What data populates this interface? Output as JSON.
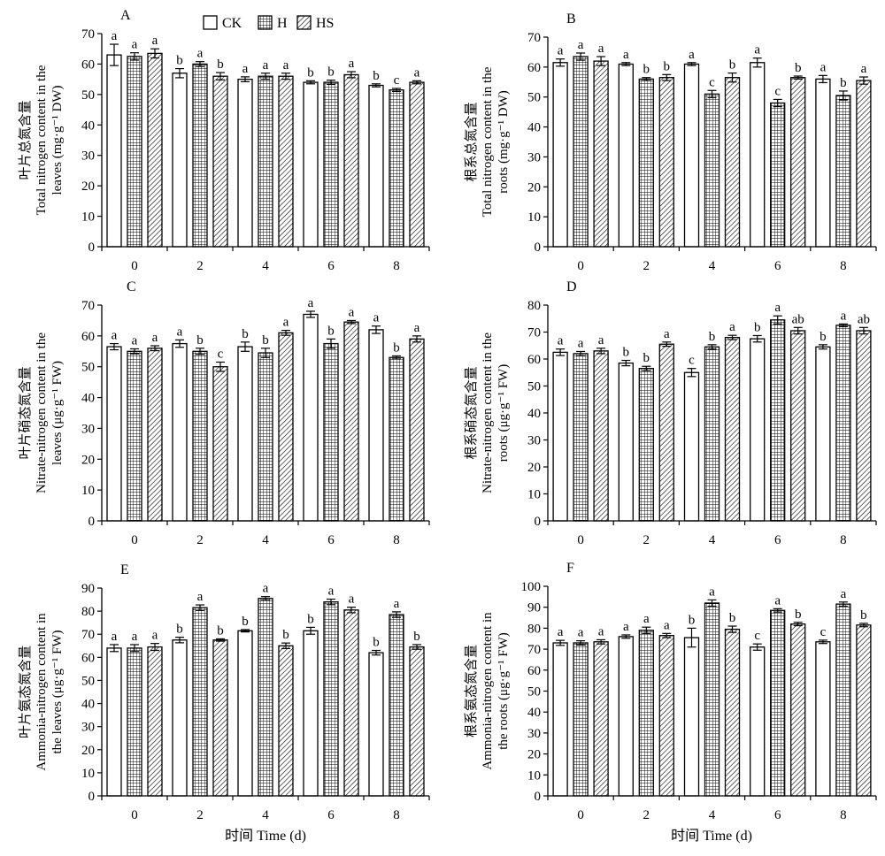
{
  "legend": {
    "items": [
      {
        "label": "CK",
        "pattern": "plain"
      },
      {
        "label": "H",
        "pattern": "grid"
      },
      {
        "label": "HS",
        "pattern": "hatch"
      }
    ]
  },
  "x_axis_title": "时间 Time (d)",
  "chart_data": [
    {
      "type": "bar",
      "panel": "A",
      "ylabel_lines": [
        "叶片总氮含量",
        "Total nitrogen content in the",
        "leaves (mg·g⁻¹ DW)"
      ],
      "categories": [
        "0",
        "2",
        "4",
        "6",
        "8"
      ],
      "ylim": [
        0,
        70
      ],
      "yticks": [
        0,
        10,
        20,
        30,
        40,
        50,
        60,
        70
      ],
      "series": [
        {
          "name": "CK",
          "values": [
            63,
            57,
            55,
            54,
            53
          ],
          "errors": [
            3.5,
            1.5,
            0.8,
            0.5,
            0.5
          ],
          "letters": [
            "a",
            "b",
            "a",
            "b",
            "b"
          ]
        },
        {
          "name": "H",
          "values": [
            62.5,
            60,
            56,
            54,
            51.5
          ],
          "errors": [
            1.2,
            0.8,
            1.0,
            0.7,
            0.5
          ],
          "letters": [
            "a",
            "a",
            "a",
            "b",
            "c"
          ]
        },
        {
          "name": "HS",
          "values": [
            63.5,
            56,
            56,
            56.5,
            54
          ],
          "errors": [
            1.5,
            1.2,
            1.0,
            1.0,
            0.5
          ],
          "letters": [
            "a",
            "b",
            "a",
            "a",
            "a"
          ]
        }
      ]
    },
    {
      "type": "bar",
      "panel": "B",
      "ylabel_lines": [
        "根系总氮含量",
        "Total nitrogen content in the",
        "roots (mg·g⁻¹ DW)"
      ],
      "categories": [
        "0",
        "2",
        "4",
        "6",
        "8"
      ],
      "ylim": [
        0,
        70
      ],
      "yticks": [
        0,
        10,
        20,
        30,
        40,
        50,
        60,
        70
      ],
      "series": [
        {
          "name": "CK",
          "values": [
            61.5,
            61,
            61,
            61.5,
            56
          ],
          "errors": [
            1.2,
            0.5,
            0.5,
            1.5,
            1.2
          ],
          "letters": [
            "a",
            "a",
            "a",
            "a",
            "a"
          ]
        },
        {
          "name": "H",
          "values": [
            63.5,
            56,
            51,
            48,
            50.5
          ],
          "errors": [
            1.2,
            0.5,
            1.2,
            1.2,
            1.5
          ],
          "letters": [
            "a",
            "b",
            "c",
            "c",
            "b"
          ]
        },
        {
          "name": "HS",
          "values": [
            62,
            56.5,
            56.5,
            56.5,
            55.5
          ],
          "errors": [
            1.5,
            1.0,
            1.5,
            0.5,
            1.2
          ],
          "letters": [
            "a",
            "b",
            "b",
            "b",
            "a"
          ]
        }
      ]
    },
    {
      "type": "bar",
      "panel": "C",
      "ylabel_lines": [
        "叶片硝态氮含量",
        "Nitrate-nitrogen content in the",
        "leaves (μg·g⁻¹ FW)"
      ],
      "categories": [
        "0",
        "2",
        "4",
        "6",
        "8"
      ],
      "ylim": [
        0,
        70
      ],
      "yticks": [
        0,
        10,
        20,
        30,
        40,
        50,
        60,
        70
      ],
      "series": [
        {
          "name": "CK",
          "values": [
            56.5,
            57.5,
            56.5,
            67,
            62
          ],
          "errors": [
            1.0,
            1.2,
            1.5,
            1.0,
            1.2
          ],
          "letters": [
            "a",
            "a",
            "b",
            "a",
            "a"
          ]
        },
        {
          "name": "H",
          "values": [
            55,
            55,
            54.5,
            57.5,
            53
          ],
          "errors": [
            0.8,
            1.0,
            1.5,
            1.5,
            0.5
          ],
          "letters": [
            "a",
            "b",
            "b",
            "b",
            "b"
          ]
        },
        {
          "name": "HS",
          "values": [
            56,
            50,
            61,
            64.5,
            59
          ],
          "errors": [
            0.8,
            1.5,
            0.8,
            0.5,
            1.0
          ],
          "letters": [
            "a",
            "c",
            "a",
            "a",
            "a"
          ]
        }
      ]
    },
    {
      "type": "bar",
      "panel": "D",
      "ylabel_lines": [
        "根系硝态氮含量",
        "Nitrate-nitrogen content in the",
        "roots (μg·g⁻¹ FW)"
      ],
      "categories": [
        "0",
        "2",
        "4",
        "6",
        "8"
      ],
      "ylim": [
        0,
        80
      ],
      "yticks": [
        0,
        10,
        20,
        30,
        40,
        50,
        60,
        70,
        80
      ],
      "series": [
        {
          "name": "CK",
          "values": [
            62.5,
            58.5,
            55,
            67.5,
            64.5
          ],
          "errors": [
            1.2,
            1.0,
            1.5,
            1.2,
            0.8
          ],
          "letters": [
            "a",
            "b",
            "c",
            "b",
            "b"
          ]
        },
        {
          "name": "H",
          "values": [
            62,
            56.5,
            64.5,
            74.5,
            72.5
          ],
          "errors": [
            0.8,
            0.8,
            0.8,
            1.5,
            0.5
          ],
          "letters": [
            "a",
            "b",
            "b",
            "a",
            "a"
          ]
        },
        {
          "name": "HS",
          "values": [
            63,
            65.5,
            68,
            70.5,
            70.5
          ],
          "errors": [
            1.0,
            0.8,
            0.8,
            1.2,
            1.2
          ],
          "letters": [
            "a",
            "a",
            "a",
            "ab",
            "ab"
          ]
        }
      ]
    },
    {
      "type": "bar",
      "panel": "E",
      "ylabel_lines": [
        "叶片氨态氮含量",
        "Ammonia-nitrogen content in",
        "the leaves (μg·g⁻¹ FW)"
      ],
      "categories": [
        "0",
        "2",
        "4",
        "6",
        "8"
      ],
      "ylim": [
        0,
        90
      ],
      "yticks": [
        0,
        10,
        20,
        30,
        40,
        50,
        60,
        70,
        80,
        90
      ],
      "series": [
        {
          "name": "CK",
          "values": [
            64,
            67.5,
            71.5,
            71.5,
            62
          ],
          "errors": [
            1.5,
            1.2,
            0.5,
            1.5,
            1.0
          ],
          "letters": [
            "a",
            "b",
            "b",
            "b",
            "b"
          ]
        },
        {
          "name": "H",
          "values": [
            64,
            81.5,
            85.5,
            84,
            78.5
          ],
          "errors": [
            1.5,
            1.2,
            0.8,
            1.2,
            1.2
          ],
          "letters": [
            "a",
            "a",
            "a",
            "a",
            "a"
          ]
        },
        {
          "name": "HS",
          "values": [
            64.5,
            67.5,
            65,
            80.5,
            64.5
          ],
          "errors": [
            1.5,
            0.5,
            1.2,
            1.2,
            1.0
          ],
          "letters": [
            "a",
            "b",
            "b",
            "a",
            "b"
          ]
        }
      ]
    },
    {
      "type": "bar",
      "panel": "F",
      "ylabel_lines": [
        "根系氨态氮含量",
        "Ammonia-nitrogen content in",
        "the roots (μg·g⁻¹ FW)"
      ],
      "categories": [
        "0",
        "2",
        "4",
        "6",
        "8"
      ],
      "ylim": [
        0,
        100
      ],
      "yticks": [
        0,
        10,
        20,
        30,
        40,
        50,
        60,
        70,
        80,
        90,
        100
      ],
      "series": [
        {
          "name": "CK",
          "values": [
            73,
            76,
            75.5,
            71,
            73.5
          ],
          "errors": [
            1.2,
            0.8,
            4.5,
            1.5,
            0.8
          ],
          "letters": [
            "a",
            "a",
            "b",
            "c",
            "c"
          ]
        },
        {
          "name": "H",
          "values": [
            73,
            79,
            92,
            88.5,
            91.5
          ],
          "errors": [
            1.0,
            1.5,
            1.5,
            0.8,
            1.0
          ],
          "letters": [
            "a",
            "a",
            "a",
            "a",
            "a"
          ]
        },
        {
          "name": "HS",
          "values": [
            73.5,
            76.5,
            79.5,
            82,
            81.5
          ],
          "errors": [
            1.0,
            1.0,
            1.5,
            0.8,
            0.8
          ],
          "letters": [
            "a",
            "a",
            "b",
            "b",
            "b"
          ]
        }
      ]
    }
  ]
}
